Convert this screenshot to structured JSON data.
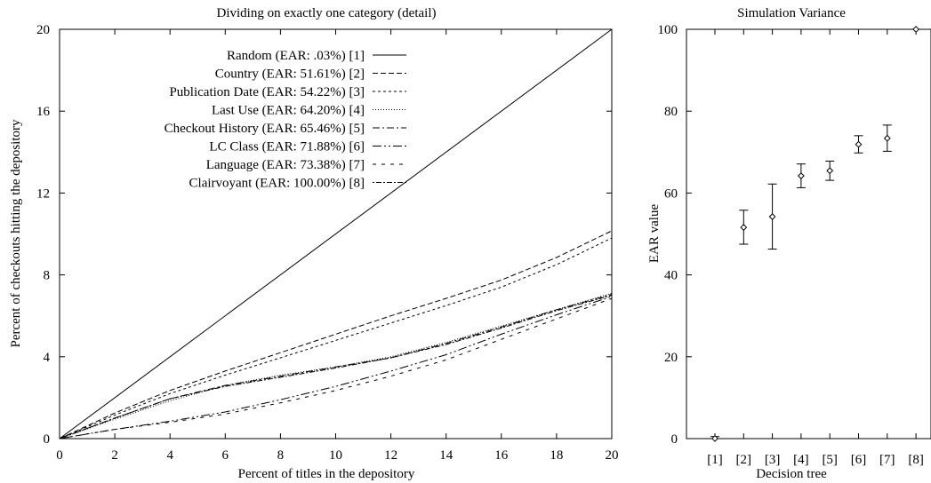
{
  "chart_data": [
    {
      "type": "line",
      "title": "Dividing on exactly one category (detail)",
      "xlabel": "Percent of titles in the depository",
      "ylabel": "Percent of checkouts hitting the depository",
      "xlim": [
        0,
        20
      ],
      "ylim": [
        0,
        20
      ],
      "xticks": [
        "0",
        "2",
        "4",
        "6",
        "8",
        "10",
        "12",
        "14",
        "16",
        "18",
        "20"
      ],
      "yticks": [
        "0",
        "4",
        "8",
        "12",
        "16",
        "20"
      ],
      "grid": false,
      "legend_position": "top-center",
      "series": [
        {
          "name": "Random (EAR: .03%) [1]",
          "dash": "solid",
          "x": [
            0,
            20
          ],
          "y": [
            0,
            20
          ]
        },
        {
          "name": "Country (EAR: 51.61%) [2]",
          "dash": "dashed",
          "x": [
            0,
            2,
            4,
            6,
            8,
            10,
            12,
            14,
            16,
            18,
            20
          ],
          "y": [
            0,
            1.25,
            2.35,
            3.3,
            4.2,
            5.1,
            6.0,
            6.85,
            7.75,
            8.85,
            10.15
          ]
        },
        {
          "name": "Publication Date (EAR: 54.22%) [3]",
          "dash": "short-dash",
          "x": [
            0,
            2,
            4,
            6,
            8,
            10,
            12,
            14,
            16,
            18,
            20
          ],
          "y": [
            0,
            1.15,
            2.2,
            3.1,
            3.95,
            4.8,
            5.65,
            6.5,
            7.4,
            8.5,
            9.8
          ]
        },
        {
          "name": "Last Use (EAR: 64.20%) [4]",
          "dash": "dotted",
          "x": [
            0,
            2,
            4,
            6,
            8,
            10,
            12,
            14,
            16,
            18,
            20
          ],
          "y": [
            0,
            0.95,
            1.85,
            2.6,
            3.1,
            3.5,
            4.0,
            4.7,
            5.5,
            6.3,
            7.1
          ]
        },
        {
          "name": "Checkout History (EAR: 65.46%) [5]",
          "dash": "dash-dot",
          "x": [
            0,
            2,
            4,
            6,
            8,
            10,
            12,
            14,
            16,
            18,
            20
          ],
          "y": [
            0,
            1.0,
            1.95,
            2.6,
            3.05,
            3.5,
            3.95,
            4.65,
            5.45,
            6.3,
            7.05
          ]
        },
        {
          "name": "LC Class (EAR: 71.88%) [6]",
          "dash": "long-dash-dot",
          "x": [
            0,
            2,
            4,
            6,
            8,
            10,
            12,
            14,
            16,
            18,
            20
          ],
          "y": [
            0,
            0.45,
            0.85,
            1.3,
            1.9,
            2.55,
            3.3,
            4.1,
            5.1,
            6.05,
            6.95
          ]
        },
        {
          "name": "Language (EAR: 73.38%) [7]",
          "dash": "sparse-dash",
          "x": [
            0,
            2,
            4,
            6,
            8,
            10,
            12,
            14,
            16,
            18,
            20
          ],
          "y": [
            0,
            0.45,
            0.8,
            1.2,
            1.75,
            2.35,
            3.05,
            3.85,
            4.85,
            5.85,
            6.85
          ]
        },
        {
          "name": "Clairvoyant (EAR: 100.00%) [8]",
          "dash": "dot-dash-fine",
          "x": [
            0,
            2,
            4,
            6,
            8,
            10,
            12,
            14,
            16,
            18,
            20
          ],
          "y": [
            0,
            1.0,
            1.95,
            2.55,
            3.0,
            3.45,
            3.95,
            4.6,
            5.4,
            6.25,
            7.0
          ]
        }
      ]
    },
    {
      "type": "scatter",
      "title": "Simulation Variance",
      "xlabel": "Decision tree",
      "ylabel": "EAR value",
      "categories": [
        "[1]",
        "[2]",
        "[3]",
        "[4]",
        "[5]",
        "[6]",
        "[7]",
        "[8]"
      ],
      "ylim": [
        0,
        100
      ],
      "yticks": [
        "0",
        "20",
        "40",
        "60",
        "80",
        "100"
      ],
      "grid": false,
      "points": [
        {
          "value": 0.03,
          "low": 0,
          "high": 0.5
        },
        {
          "value": 51.61,
          "low": 47.5,
          "high": 55.8
        },
        {
          "value": 54.22,
          "low": 46.3,
          "high": 62.2
        },
        {
          "value": 64.2,
          "low": 61.3,
          "high": 67.1
        },
        {
          "value": 65.46,
          "low": 63.1,
          "high": 67.8
        },
        {
          "value": 71.88,
          "low": 69.8,
          "high": 74.0
        },
        {
          "value": 73.38,
          "low": 70.2,
          "high": 76.6
        },
        {
          "value": 100.0,
          "low": 100.0,
          "high": 100.0
        }
      ]
    }
  ]
}
